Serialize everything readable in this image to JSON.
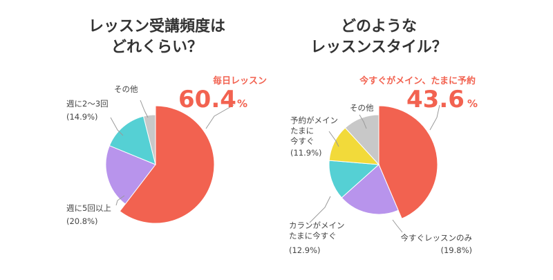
{
  "colors": {
    "red": "#f26250",
    "purple": "#b894ec",
    "cyan": "#55d0d4",
    "gray": "#c8c8c8",
    "yellow": "#f2da3a",
    "title": "#333333",
    "label": "#444444",
    "leader": "#999999"
  },
  "chart_data": [
    {
      "type": "pie",
      "title": "レッスン受講頻度は\nどれくらい？",
      "slices": [
        {
          "name": "毎日レッスン",
          "value": 60.4,
          "color": "#f26250",
          "highlight": true,
          "value_text": "60.4",
          "unit": "%"
        },
        {
          "name": "週に5回以上",
          "value": 20.8,
          "color": "#b894ec",
          "value_text": "(20.8%)"
        },
        {
          "name": "週に2〜3回",
          "value": 14.9,
          "color": "#55d0d4",
          "value_text": "(14.9%)"
        },
        {
          "name": "その他",
          "value": 3.9,
          "color": "#c8c8c8",
          "value_text": ""
        }
      ]
    },
    {
      "type": "pie",
      "title": "どのような\nレッスンスタイル？",
      "slices": [
        {
          "name": "今すぐがメイン、たまに予約",
          "value": 43.6,
          "color": "#f26250",
          "highlight": true,
          "value_text": "43.6",
          "unit": "%"
        },
        {
          "name": "今すぐレッスンのみ",
          "value": 19.8,
          "color": "#b894ec",
          "value_text": "(19.8%)"
        },
        {
          "name": "カランがメイン\nたまに今すぐ",
          "value": 12.9,
          "color": "#55d0d4",
          "value_text": "(12.9%)"
        },
        {
          "name": "予約がメイン\nたまに\n今すぐ",
          "value": 11.9,
          "color": "#f2da3a",
          "value_text": "(11.9%)"
        },
        {
          "name": "その他",
          "value": 11.8,
          "color": "#c8c8c8",
          "value_text": ""
        }
      ]
    }
  ]
}
